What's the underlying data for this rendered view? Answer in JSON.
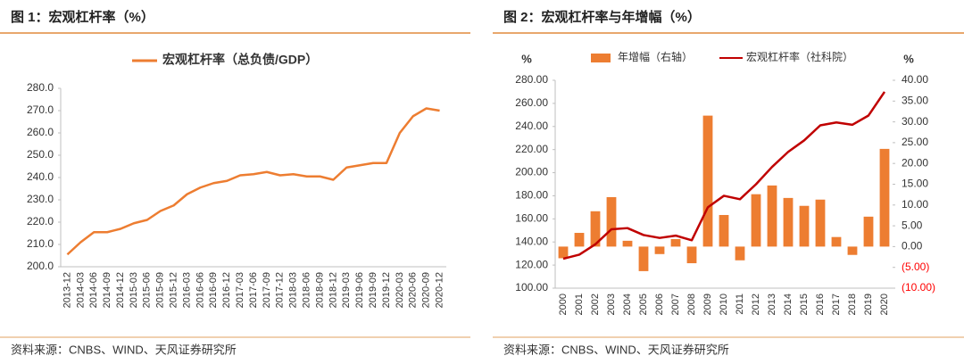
{
  "chart_data": [
    {
      "type": "line",
      "header": "图 1：宏观杠杆率（%）",
      "source": "资料来源：CNBS、WIND、天风证券研究所",
      "categories": [
        "2013-12",
        "2014-03",
        "2014-06",
        "2014-09",
        "2014-12",
        "2015-03",
        "2015-06",
        "2015-09",
        "2015-12",
        "2016-03",
        "2016-06",
        "2016-09",
        "2016-12",
        "2017-03",
        "2017-06",
        "2017-09",
        "2017-12",
        "2018-03",
        "2018-06",
        "2018-09",
        "2018-12",
        "2019-03",
        "2019-06",
        "2019-09",
        "2019-12",
        "2020-03",
        "2020-06",
        "2020-09",
        "2020-12"
      ],
      "series": [
        {
          "name": "宏观杠杆率（总负债/GDP）",
          "color": "#ed7d31",
          "values": [
            205.5,
            211,
            215.5,
            215.5,
            217,
            219.5,
            221,
            225,
            227.5,
            232.5,
            235.5,
            237.5,
            238.5,
            241,
            241.5,
            242.5,
            241,
            241.5,
            240.5,
            240.5,
            239,
            244.5,
            245.5,
            246.5,
            246.5,
            260,
            267.5,
            271,
            270
          ]
        }
      ],
      "ylim": [
        200,
        280
      ],
      "yticks": [
        {
          "value": 200,
          "label": "200.0"
        },
        {
          "value": 210,
          "label": "210.0"
        },
        {
          "value": 220,
          "label": "220.0"
        },
        {
          "value": 230,
          "label": "230.0"
        },
        {
          "value": 240,
          "label": "240.0"
        },
        {
          "value": 250,
          "label": "250.0"
        },
        {
          "value": 260,
          "label": "260.0"
        },
        {
          "value": 270,
          "label": "270.0"
        },
        {
          "value": 280,
          "label": "280.0"
        }
      ],
      "grid": false
    },
    {
      "type": "combo",
      "header": "图 2：宏观杠杆率与年增幅（%）",
      "source": "资料来源：CNBS、WIND、天风证券研究所",
      "y_label": "%",
      "y2_label": "%",
      "categories": [
        "2000",
        "2001",
        "2002",
        "2003",
        "2004",
        "2005",
        "2006",
        "2007",
        "2008",
        "2009",
        "2010",
        "2011",
        "2012",
        "2013",
        "2014",
        "2015",
        "2016",
        "2017",
        "2018",
        "2019",
        "2020"
      ],
      "series": [
        {
          "name": "年增幅（右轴）",
          "type": "bar",
          "axis": "y2",
          "color": "#ed7d31",
          "values": [
            -2.8,
            3.3,
            8.5,
            11.9,
            1.4,
            -5.9,
            -1.8,
            1.8,
            -4.0,
            31.5,
            7.6,
            -3.3,
            12.6,
            14.7,
            11.7,
            9.8,
            11.3,
            2.3,
            -2.0,
            7.2,
            23.5
          ]
        },
        {
          "name": "宏观杠杆率（社科院）",
          "type": "line",
          "color": "#c00000",
          "values": [
            125.5,
            129,
            138,
            151,
            152,
            146,
            143.5,
            145.5,
            141.5,
            170,
            180,
            177,
            190,
            205,
            218,
            228,
            241,
            243.5,
            241.5,
            249.5,
            270
          ]
        }
      ],
      "ylim": [
        100,
        280
      ],
      "yticks": [
        {
          "value": 100,
          "label": "100.00"
        },
        {
          "value": 120,
          "label": "120.00"
        },
        {
          "value": 140,
          "label": "140.00"
        },
        {
          "value": 160,
          "label": "160.00"
        },
        {
          "value": 180,
          "label": "180.00"
        },
        {
          "value": 200,
          "label": "200.00"
        },
        {
          "value": 220,
          "label": "220.00"
        },
        {
          "value": 240,
          "label": "240.00"
        },
        {
          "value": 260,
          "label": "260.00"
        },
        {
          "value": 280,
          "label": "280.00"
        }
      ],
      "y2lim": [
        -10,
        40
      ],
      "y2ticks": [
        {
          "value": -10,
          "label": "(10.00)"
        },
        {
          "value": -5,
          "label": "(5.00)"
        },
        {
          "value": 0,
          "label": "0.00"
        },
        {
          "value": 5,
          "label": "5.00"
        },
        {
          "value": 10,
          "label": "10.00"
        },
        {
          "value": 15,
          "label": "15.00"
        },
        {
          "value": 20,
          "label": "20.00"
        },
        {
          "value": 25,
          "label": "25.00"
        },
        {
          "value": 30,
          "label": "30.00"
        },
        {
          "value": 35,
          "label": "35.00"
        },
        {
          "value": 40,
          "label": "40.00"
        }
      ],
      "y2_negative_tick_color": "#ff0000",
      "grid": false
    }
  ]
}
